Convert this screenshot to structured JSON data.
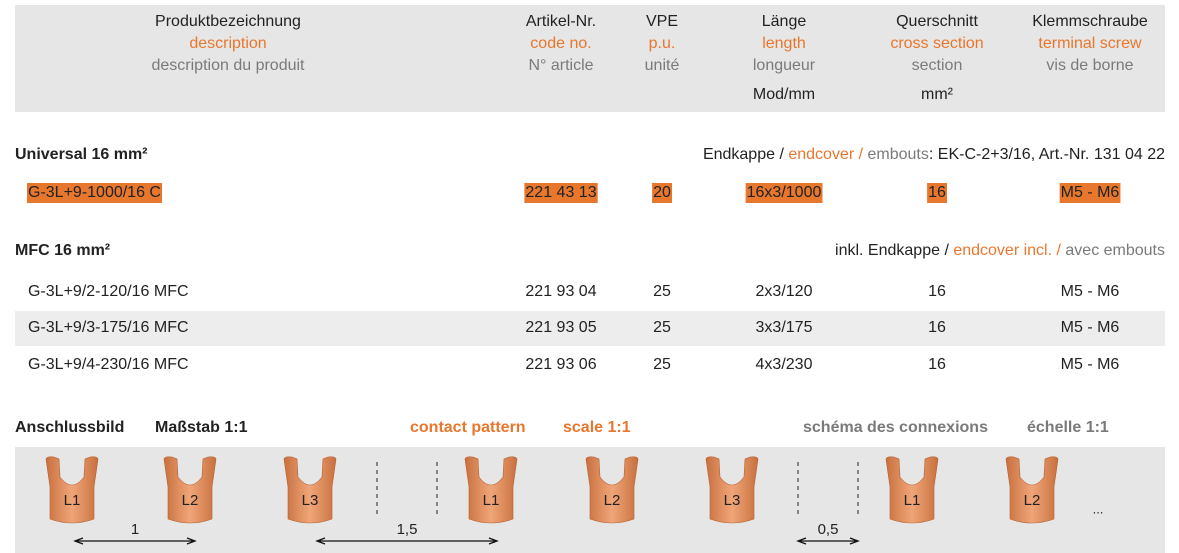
{
  "header": {
    "columns": [
      {
        "de": "Produktbezeichnung",
        "en": "description",
        "fr": "description du produit"
      },
      {
        "de": "Artikel-Nr.",
        "en": "code no.",
        "fr": "N° article"
      },
      {
        "de": "VPE",
        "en": "p.u.",
        "fr": "unité"
      },
      {
        "de": "Länge",
        "en": "length",
        "fr": "longueur",
        "unit": "Mod/mm"
      },
      {
        "de": "Querschnitt",
        "en": "cross section",
        "fr": "section",
        "unit": "mm²"
      },
      {
        "de": "Klemmschraube",
        "en": "terminal screw",
        "fr": "vis de borne"
      }
    ]
  },
  "sections": [
    {
      "title": "Universal 16 mm²",
      "note": [
        "Endkappe / ",
        "endcover / ",
        "embouts",
        ": EK-C-2+3/16, Art.-Nr. 131 04 22"
      ],
      "rows": [
        [
          "G-3L+9-1000/16 C",
          "221 43 13",
          "20",
          "16x3/1000",
          "16",
          "M5 - M6"
        ]
      ]
    },
    {
      "title": "MFC 16 mm²",
      "note": [
        "inkl. Endkappe / ",
        "endcover incl. / ",
        "avec embouts"
      ],
      "rows": [
        [
          "G-3L+9/2-120/16 MFC",
          "221 93 04",
          "25",
          "2x3/120",
          "16",
          "M5 - M6"
        ],
        [
          "G-3L+9/3-175/16 MFC",
          "221 93 05",
          "25",
          "3x3/175",
          "16",
          "M5 - M6"
        ],
        [
          "G-3L+9/4-230/16 MFC",
          "221 93 06",
          "25",
          "4x3/230",
          "16",
          "M5 - M6"
        ]
      ]
    }
  ],
  "diagram": {
    "titles": [
      "Anschlussbild",
      "Maßstab 1:1",
      "contact pattern",
      "scale 1:1",
      "schéma des connexions",
      "échelle 1:1"
    ],
    "terminals": [
      "L1",
      "L2",
      "L3",
      "L1",
      "L2",
      "L3",
      "L1",
      "L2"
    ],
    "dimensions": [
      "1",
      "1,5",
      "0,5"
    ],
    "more": "..."
  }
}
